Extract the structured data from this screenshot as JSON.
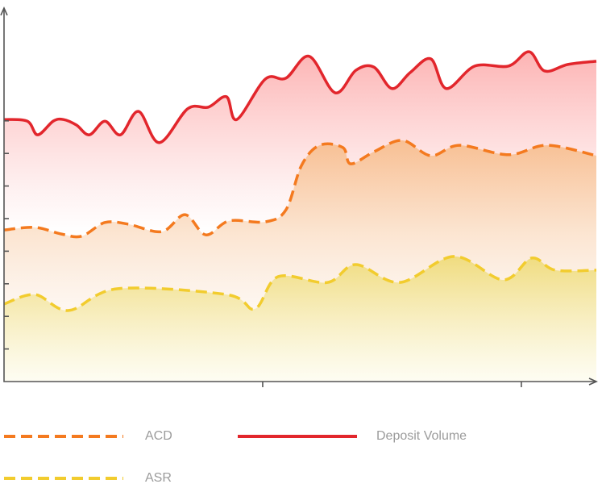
{
  "chart_data": {
    "type": "line",
    "xlim": [
      0,
      2.29
    ],
    "xticks": [
      1,
      2
    ],
    "ylim": [
      0,
      11.46
    ],
    "yticks": [
      1,
      2,
      3,
      4,
      5,
      6,
      7,
      8
    ],
    "legend": "bottom",
    "series": [
      {
        "name": "Deposit Volume",
        "color": "#e2262c",
        "style": "solid",
        "x": [
          0,
          0.09,
          0.13,
          0.19,
          0.23,
          0.28,
          0.33,
          0.39,
          0.45,
          0.52,
          0.6,
          0.71,
          0.79,
          0.86,
          0.9,
          1.01,
          1.09,
          1.18,
          1.28,
          1.36,
          1.43,
          1.5,
          1.57,
          1.65,
          1.71,
          1.82,
          1.95,
          2.03,
          2.09,
          2.18,
          2.29
        ],
        "values": [
          8.04,
          7.99,
          7.57,
          7.99,
          8.04,
          7.87,
          7.57,
          7.99,
          7.57,
          8.29,
          7.33,
          8.37,
          8.42,
          8.74,
          8.04,
          9.28,
          9.31,
          9.98,
          8.86,
          9.55,
          9.65,
          8.99,
          9.48,
          9.9,
          8.99,
          9.68,
          9.68,
          10.12,
          9.53,
          9.73,
          9.83
        ]
      },
      {
        "name": "ACD",
        "color": "#f47a1f",
        "style": "dashed",
        "x": [
          0,
          0.12,
          0.22,
          0.3,
          0.39,
          0.48,
          0.61,
          0.7,
          0.78,
          0.87,
          1.01,
          1.09,
          1.15,
          1.22,
          1.31,
          1.34,
          1.43,
          1.54,
          1.65,
          1.76,
          1.95,
          2.1,
          2.29
        ],
        "values": [
          4.65,
          4.73,
          4.53,
          4.46,
          4.88,
          4.83,
          4.6,
          5.12,
          4.5,
          4.93,
          4.9,
          5.27,
          6.63,
          7.25,
          7.18,
          6.68,
          7.05,
          7.4,
          6.93,
          7.25,
          6.96,
          7.25,
          6.93
        ]
      },
      {
        "name": "ASR",
        "color": "#f2cc2e",
        "style": "dashed",
        "x": [
          0,
          0.12,
          0.25,
          0.44,
          0.86,
          0.97,
          1.06,
          1.25,
          1.36,
          1.53,
          1.74,
          1.93,
          2.04,
          2.13,
          2.29
        ],
        "values": [
          2.38,
          2.67,
          2.18,
          2.85,
          2.67,
          2.23,
          3.22,
          3.04,
          3.59,
          3.04,
          3.84,
          3.12,
          3.79,
          3.42,
          3.42
        ]
      }
    ]
  }
}
